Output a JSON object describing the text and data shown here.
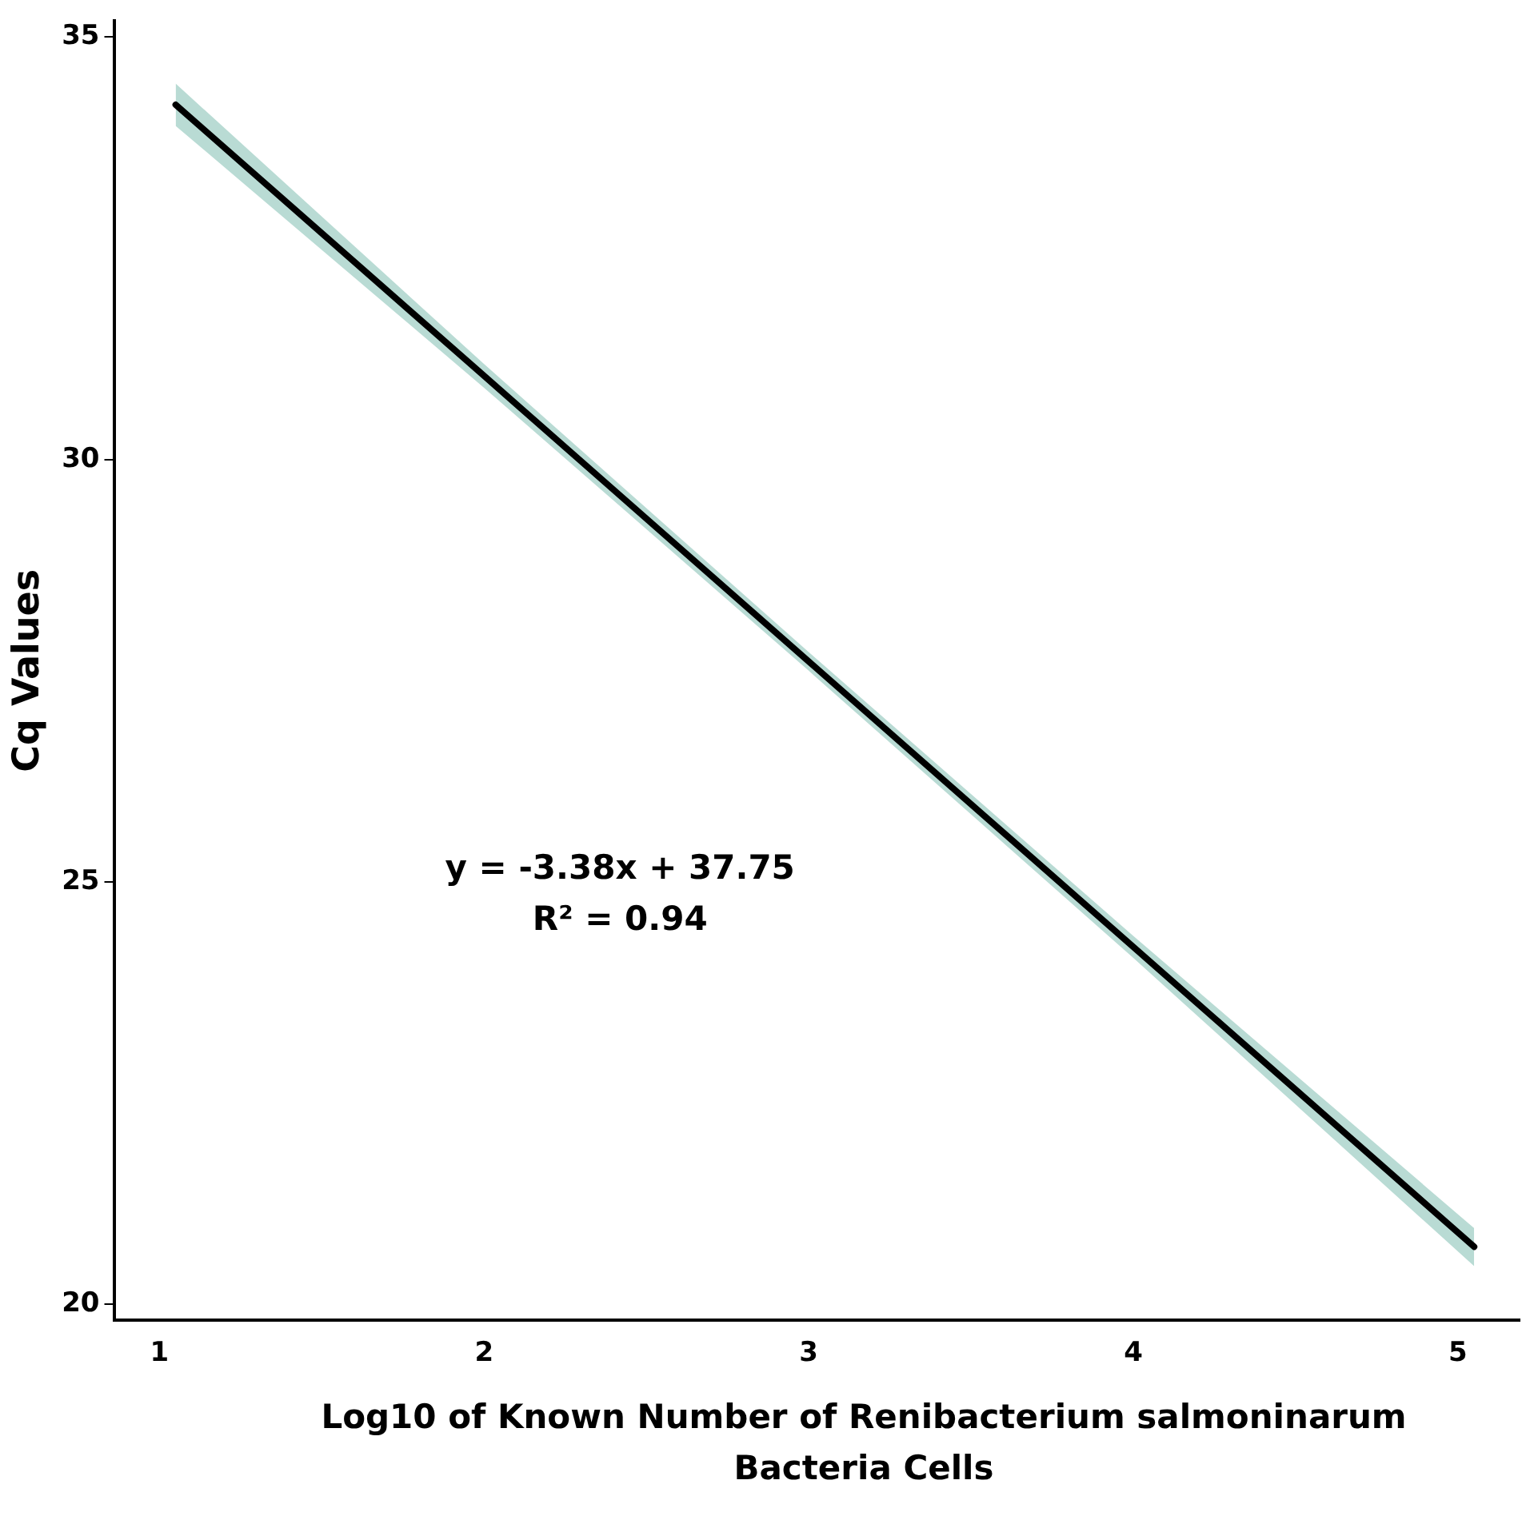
{
  "chart_data": {
    "type": "line",
    "xlabel": "Log10 of Known Number of Renibacterium salmoninarum Bacteria Cells",
    "ylabel": "Cq Values",
    "annotations": [
      "y = -3.38x + 37.75",
      "R² = 0.94"
    ],
    "series": [
      {
        "color": "#000000",
        "x": [
          1.05,
          2,
          3,
          4,
          5.05
        ],
        "values": [
          34.2,
          30.99,
          27.61,
          24.23,
          20.68
        ],
        "lower": [
          33.95,
          30.85,
          27.5,
          24.1,
          20.45
        ],
        "upper": [
          34.45,
          31.13,
          27.72,
          24.36,
          20.9
        ]
      }
    ],
    "xlim": [
      0.86,
      5.19
    ],
    "xticks": [
      1,
      2,
      3,
      4,
      5
    ],
    "ylim": [
      19.81,
      35.19
    ],
    "yticks": [
      20,
      25,
      30,
      35
    ],
    "grid": false,
    "legend": false,
    "marker": "none",
    "line_style": "solid"
  }
}
